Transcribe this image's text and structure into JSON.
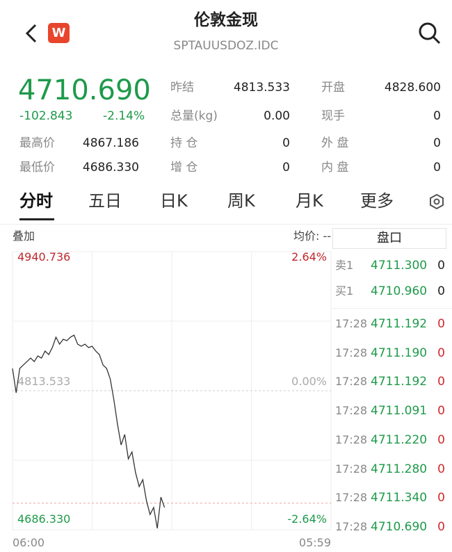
{
  "header": {
    "title": "伦敦金现",
    "subtitle": "SPTAUUSDOZ.IDC",
    "badge": "W"
  },
  "quote": {
    "last": "4710.690",
    "change": "-102.843",
    "change_pct": "-2.14%",
    "fields": [
      {
        "label": "昨结",
        "value": "4813.533"
      },
      {
        "label": "开盘",
        "value": "4828.600"
      },
      {
        "label": "最高价",
        "value": "4867.186"
      },
      {
        "label": "总量(kg)",
        "value": "0.00"
      },
      {
        "label": "现手",
        "value": "0"
      },
      {
        "label": "持 仓",
        "value": "0"
      },
      {
        "label": "外 盘",
        "value": "0"
      },
      {
        "label": "最低价",
        "value": "4686.330"
      },
      {
        "label": "增 仓",
        "value": "0"
      },
      {
        "label": "内 盘",
        "value": "0"
      }
    ]
  },
  "tabs": [
    "分时",
    "五日",
    "日K",
    "周K",
    "月K",
    "更多"
  ],
  "chart_header": {
    "overlay": "叠加",
    "avg": "均价: --"
  },
  "chart_data": {
    "type": "line",
    "color": "#333333",
    "values": [
      4833.9,
      4811.6,
      4833.9,
      4837.1,
      4840.2,
      4843.4,
      4840.2,
      4845.3,
      4843.4,
      4849.8,
      4846.6,
      4853.0,
      4862.5,
      4856.1,
      4860.6,
      4859.3,
      4862.5,
      4864.4,
      4856.1,
      4854.2,
      4856.1,
      4853.0,
      4854.2,
      4849.8,
      4846.6,
      4837.1,
      4833.9,
      4824.3,
      4805.3,
      4783.0,
      4763.9,
      4773.5,
      4751.2,
      4757.5,
      4738.5,
      4725.8,
      4732.1,
      4713.0,
      4700.3,
      4706.7,
      4687.6,
      4716.2,
      4706.7
    ],
    "ylim": [
      4686.33,
      4940.736
    ],
    "yticks": [
      {
        "value": 4940.736,
        "label": "4940.736"
      },
      {
        "value": 4813.533,
        "label": "4813.533"
      },
      {
        "value": 4686.33,
        "label": "4686.330"
      }
    ],
    "y2lim": [
      -2.64,
      2.64
    ],
    "y2ticks": [
      {
        "value": 2.64,
        "label": "2.64%"
      },
      {
        "value": 0,
        "label": "0.00%"
      },
      {
        "value": -2.64,
        "label": "-2.64%"
      }
    ],
    "x_labels": [
      "06:00",
      "05:59"
    ]
  },
  "order_book": {
    "title": "盘口",
    "rows": [
      {
        "side": "卖1",
        "price": "4711.300",
        "qty": "0"
      },
      {
        "side": "买1",
        "price": "4710.960",
        "qty": "0"
      }
    ]
  },
  "trades": [
    {
      "time": "17:28",
      "price": "4711.192",
      "qty": "0"
    },
    {
      "time": "17:28",
      "price": "4711.190",
      "qty": "0"
    },
    {
      "time": "17:28",
      "price": "4711.192",
      "qty": "0"
    },
    {
      "time": "17:28",
      "price": "4711.091",
      "qty": "0"
    },
    {
      "time": "17:28",
      "price": "4711.220",
      "qty": "0"
    },
    {
      "time": "17:28",
      "price": "4711.280",
      "qty": "0"
    },
    {
      "time": "17:28",
      "price": "4711.340",
      "qty": "0"
    },
    {
      "time": "17:28",
      "price": "4710.690",
      "qty": "0"
    }
  ]
}
